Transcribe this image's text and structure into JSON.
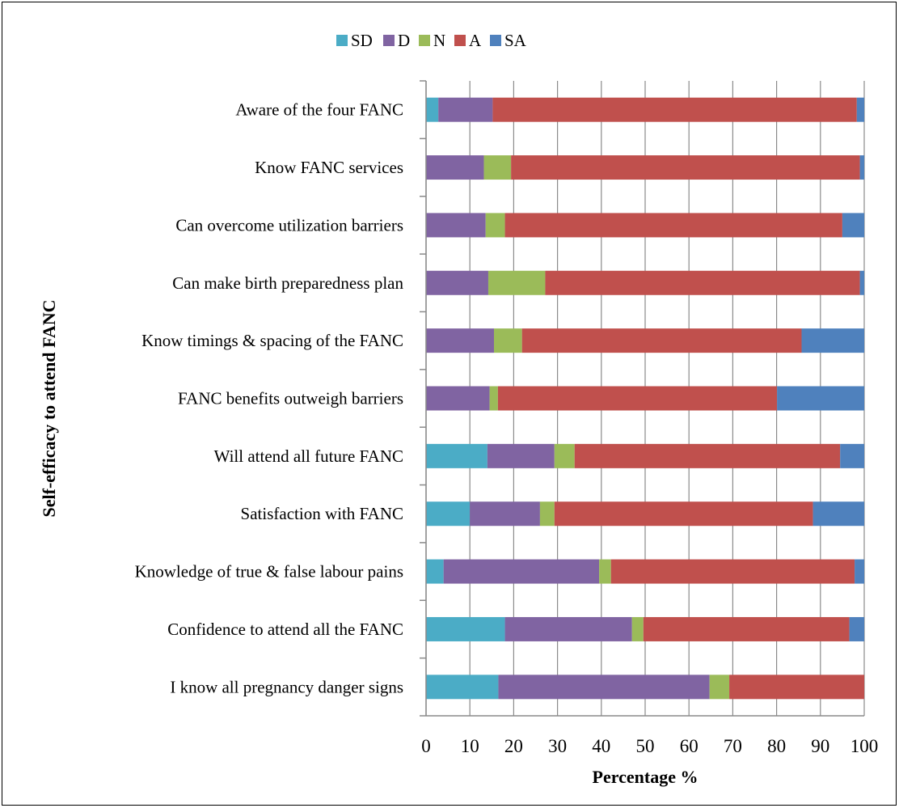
{
  "chart_data": {
    "type": "bar",
    "orientation": "horizontal",
    "stacked": true,
    "xlabel": "Percentage %",
    "ylabel": "Self-efficacy to attend FANC",
    "xlim": [
      0,
      100
    ],
    "xticks": [
      "0",
      "10",
      "20",
      "30",
      "40",
      "50",
      "60",
      "70",
      "80",
      "90",
      "100"
    ],
    "grid": "vertical",
    "legend_position": "top",
    "categories": [
      "Aware of the four FANC",
      "Know FANC services",
      "Can overcome utilization barriers",
      "Can make birth preparedness plan",
      "Know timings & spacing of the FANC",
      "FANC benefits outweigh barriers",
      "Will attend all future FANC",
      "Satisfaction with FANC",
      "Knowledge of true & false labour pains",
      "Confidence to attend all the FANC",
      "I know all pregnancy danger signs"
    ],
    "series": [
      {
        "name": "SD",
        "color": "#4BACC6",
        "values": [
          2.8,
          0,
          0,
          0,
          0,
          0,
          14,
          10,
          4,
          18,
          16.5
        ]
      },
      {
        "name": "D",
        "color": "#8064A2",
        "values": [
          12.4,
          13.2,
          13.6,
          14.2,
          15.5,
          14.5,
          15.3,
          16,
          35.5,
          29,
          48.2
        ]
      },
      {
        "name": "N",
        "color": "#9BBB59",
        "values": [
          0,
          6.2,
          4.4,
          13,
          6.4,
          1.9,
          4.6,
          3.3,
          2.7,
          2.6,
          4.5
        ]
      },
      {
        "name": "A",
        "color": "#C0504D",
        "values": [
          83.1,
          79.6,
          77,
          71.8,
          63.8,
          63.7,
          60.6,
          59,
          55.6,
          47,
          30.8
        ]
      },
      {
        "name": "SA",
        "color": "#4F81BD",
        "values": [
          1.7,
          1,
          5,
          1,
          14.3,
          19.9,
          5.5,
          11.7,
          2.2,
          3.4,
          0
        ]
      }
    ]
  }
}
